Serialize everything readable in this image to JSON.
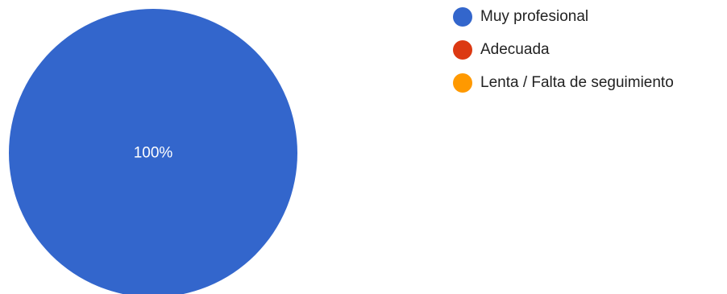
{
  "chart_data": {
    "type": "pie",
    "title": "",
    "legend_position": "right",
    "slices": [
      {
        "label": "Muy profesional",
        "value": 100,
        "display": "100%",
        "color": "#3366cc"
      },
      {
        "label": "Adecuada",
        "value": 0,
        "display": "",
        "color": "#dc3912"
      },
      {
        "label": "Lenta / Falta de seguimiento",
        "value": 0,
        "display": "",
        "color": "#ff9900"
      }
    ]
  }
}
